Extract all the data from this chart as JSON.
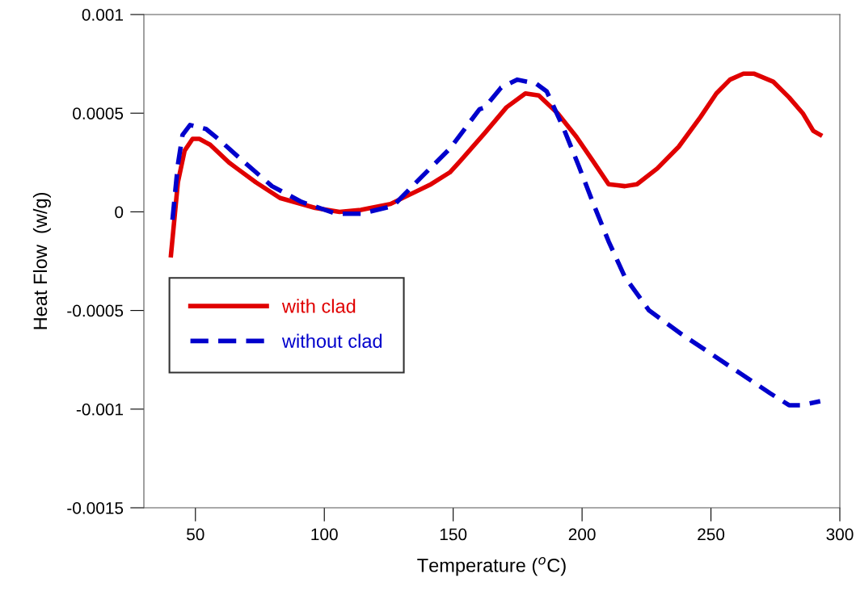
{
  "chart_data": {
    "type": "line",
    "xlabel": "Temperature ($^{o}$C)",
    "ylabel": "Heat Flow  (w/g)",
    "xlim": [
      30,
      300
    ],
    "xticks": [
      50,
      100,
      150,
      200,
      250,
      300
    ],
    "ylim": [
      -0.0015,
      0.001
    ],
    "yticks": [
      -0.0015,
      -0.001,
      -0.0005,
      0,
      0.0005,
      0.001
    ],
    "grid": false,
    "legend": "left",
    "marker": "none",
    "series": [
      {
        "name": "with clad",
        "color": "#e00000",
        "line_style": "solid",
        "x": [
          40.5,
          43.2,
          45.8,
          48.9,
          51.5,
          55.7,
          63,
          66.1,
          73.4,
          82.8,
          96.4,
          105.9,
          114.2,
          125.7,
          141.4,
          148.7,
          152.9,
          162.3,
          170.7,
          178,
          183.2,
          190.5,
          197.8,
          204.1,
          210.3,
          216.6,
          221.3,
          229.2,
          237.5,
          245.9,
          252.1,
          257.4,
          262.6,
          266.8,
          274.1,
          280.3,
          285.6,
          289.7,
          292.4
        ],
        "values": [
          -0.00022,
          0.00015,
          0.00031,
          0.00037,
          0.00037,
          0.00034,
          0.00025,
          0.00022,
          0.00015,
          7e-05,
          2e-05,
          0.0,
          1e-05,
          4e-05,
          0.00014,
          0.0002,
          0.00026,
          0.0004,
          0.00053,
          0.0006,
          0.00059,
          0.0005,
          0.00038,
          0.00026,
          0.00014,
          0.00013,
          0.00014,
          0.00022,
          0.00033,
          0.00048,
          0.0006,
          0.00067,
          0.0007,
          0.0007,
          0.00066,
          0.00058,
          0.0005,
          0.00041,
          0.00039
        ]
      },
      {
        "name": "without clad",
        "color": "#0000cc",
        "line_style": "dashed",
        "x": [
          41.1,
          43.2,
          45.0,
          47.9,
          54.1,
          58.8,
          68.2,
          79.7,
          91.2,
          104.8,
          114.2,
          126.7,
          137.2,
          148.7,
          160.2,
          162.3,
          168.6,
          174.8,
          182.2,
          186.3,
          192.6,
          198.8,
          204.1,
          210.3,
          216.6,
          226,
          238.6,
          250.1,
          261.5,
          273,
          280.3,
          285,
          292.4
        ],
        "values": [
          -4e-05,
          0.00024,
          0.00039,
          0.00044,
          0.00042,
          0.00037,
          0.00026,
          0.00013,
          5e-05,
          -1e-05,
          -1e-05,
          3e-05,
          0.00017,
          0.00032,
          0.00052,
          0.00053,
          0.00063,
          0.00067,
          0.00065,
          0.00061,
          0.00043,
          0.00023,
          5e-05,
          -0.00015,
          -0.00033,
          -0.0005,
          -0.00062,
          -0.00072,
          -0.00082,
          -0.00092,
          -0.00098,
          -0.00098,
          -0.00096
        ]
      }
    ]
  }
}
